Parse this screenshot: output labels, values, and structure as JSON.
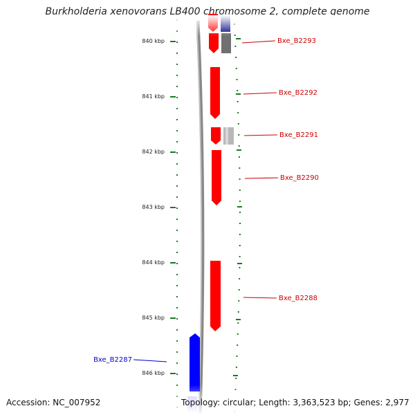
{
  "title": "Burkholderia xenovorans LB400 chromosome 2, complete genome",
  "footer": {
    "accession": "Accession: NC_007952",
    "summary": "Topology: circular; Length: 3,363,523 bp; Genes: 2,977"
  },
  "ticks": [
    "840 kbp",
    "841 kbp",
    "842 kbp",
    "843 kbp",
    "844 kbp",
    "845 kbp",
    "846 kbp"
  ],
  "genes": [
    {
      "label": "Bxe_B2293",
      "strand": "forward",
      "color": "#ff0000"
    },
    {
      "label": "Bxe_B2292",
      "strand": "forward",
      "color": "#ff0000"
    },
    {
      "label": "Bxe_B2291",
      "strand": "forward",
      "color": "#ff0000"
    },
    {
      "label": "Bxe_B2290",
      "strand": "forward",
      "color": "#ff0000"
    },
    {
      "label": "Bxe_B2288",
      "strand": "forward",
      "color": "#ff0000"
    },
    {
      "label": "Bxe_B2287",
      "strand": "reverse",
      "color": "#0000ff"
    }
  ],
  "colors": {
    "forward_gene": "#ff0000",
    "reverse_gene": "#0000ff",
    "tick": "#1a7a1a",
    "backbone": "#888888",
    "feature_dark_blue": "#000080",
    "feature_grey": "#707070",
    "feature_light_grey": "#b8b8b8",
    "feature_light_blue": "#c8c8ff"
  }
}
